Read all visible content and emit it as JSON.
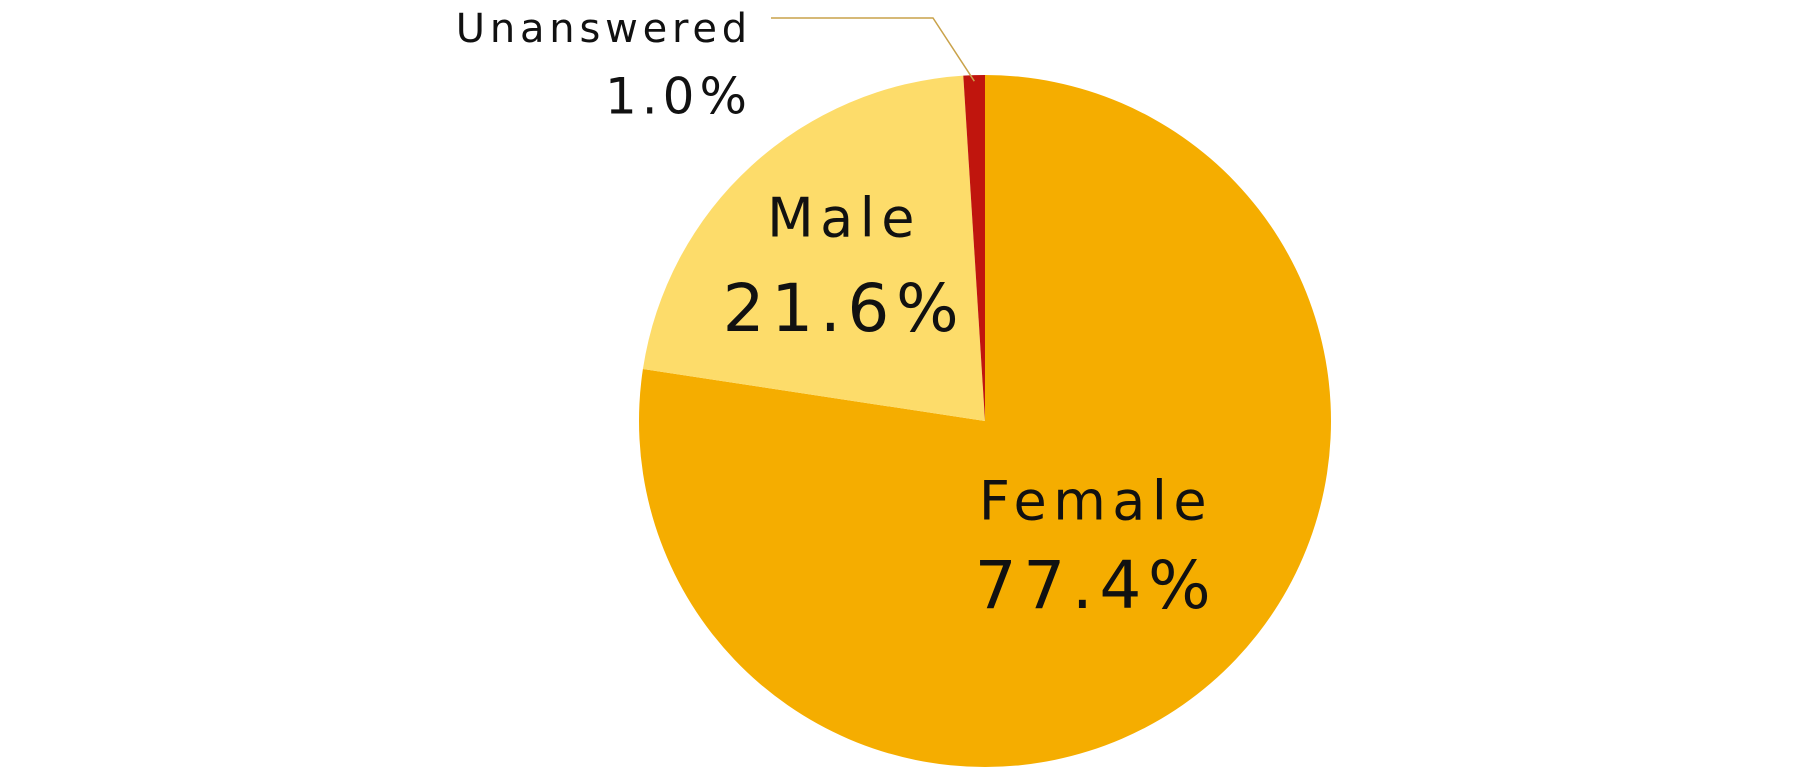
{
  "chart_data": {
    "type": "pie",
    "categories": [
      "Female",
      "Male",
      "Unanswered"
    ],
    "values": [
      77.4,
      21.6,
      1.0
    ],
    "value_labels": [
      "77.4%",
      "21.6%",
      "1.0%"
    ],
    "colors": [
      "#f5ad00",
      "#fddc6a",
      "#c0150d"
    ]
  }
}
